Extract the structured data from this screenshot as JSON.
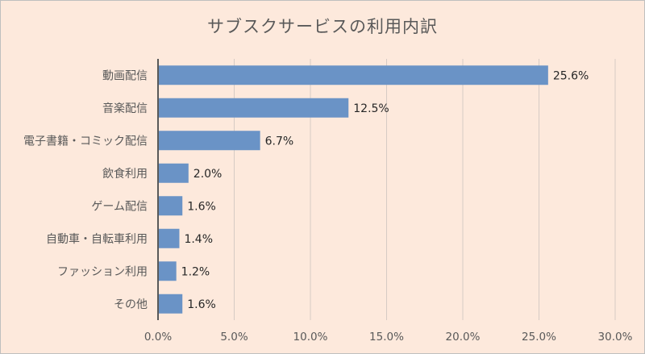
{
  "chart_data": {
    "type": "bar",
    "orientation": "horizontal",
    "title": "サブスクサービスの利用内訳",
    "categories": [
      "動画配信",
      "音楽配信",
      "電子書籍・コミック配信",
      "飲食利用",
      "ゲーム配信",
      "自動車・自転車利用",
      "ファッション利用",
      "その他"
    ],
    "values": [
      25.6,
      12.5,
      6.7,
      2.0,
      1.6,
      1.4,
      1.2,
      1.6
    ],
    "value_labels": [
      "25.6%",
      "12.5%",
      "6.7%",
      "2.0%",
      "1.6%",
      "1.4%",
      "1.2%",
      "1.6%"
    ],
    "xlim": [
      0,
      30
    ],
    "x_ticks": [
      0,
      5,
      10,
      15,
      20,
      25,
      30
    ],
    "x_tick_labels": [
      "0.0%",
      "5.0%",
      "10.0%",
      "15.0%",
      "20.0%",
      "25.0%",
      "30.0%"
    ],
    "grid": "vertical",
    "legend": "none",
    "bar_color": "#6a93c6",
    "background_color": "#fde9dc"
  }
}
